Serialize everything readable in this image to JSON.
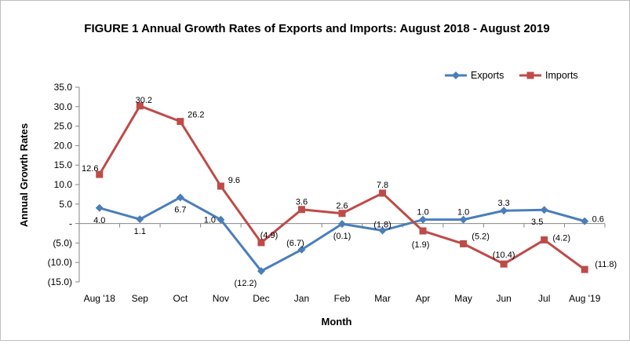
{
  "chart_data": {
    "type": "line",
    "title": "FIGURE 1  Annual Growth Rates of Exports and Imports: August 2018 -  August 2019",
    "xlabel": "Month",
    "ylabel": "Annual Growth Rates",
    "categories": [
      "Aug '18",
      "Sep",
      "Oct",
      "Nov",
      "Dec",
      "Jan",
      "Feb",
      "Mar",
      "Apr",
      "May",
      "Jun",
      "Jul",
      "Aug '19"
    ],
    "ylim": [
      -15,
      35
    ],
    "yticks": [
      35,
      30,
      25,
      20,
      15,
      10,
      5,
      0,
      -5,
      -10,
      -15
    ],
    "ytick_labels": [
      "35.0",
      "30.0",
      "25.0",
      "20.0",
      "15.0",
      "10.0",
      "5.0",
      "-",
      "(5.0)",
      "(10.0)",
      "(15.0)"
    ],
    "legend_position": "top-right",
    "series": [
      {
        "name": "Exports",
        "color": "#4a7ebb",
        "marker": "diamond",
        "values": [
          4.0,
          1.1,
          6.7,
          1.0,
          -12.2,
          -6.7,
          -0.1,
          -1.8,
          1.0,
          1.0,
          3.3,
          3.5,
          0.6
        ],
        "labels": [
          "4.0",
          "1.1",
          "6.7",
          "1.0",
          "(12.2)",
          "(6.7)",
          "(0.1)",
          "(1.8)",
          "1.0",
          "1.0",
          "3.3",
          "3.5",
          "0.6"
        ]
      },
      {
        "name": "Imports",
        "color": "#be4b48",
        "marker": "square",
        "values": [
          12.6,
          30.2,
          26.2,
          9.6,
          -4.9,
          3.6,
          2.6,
          7.8,
          -1.9,
          -5.2,
          -10.4,
          -4.2,
          -11.8
        ],
        "labels": [
          "12.6",
          "30.2",
          "26.2",
          "9.6",
          "(4.9)",
          "3.6",
          "2.6",
          "7.8",
          "(1.9)",
          "(5.2)",
          "(10.4)",
          "(4.2)",
          "(11.8)"
        ]
      }
    ]
  }
}
